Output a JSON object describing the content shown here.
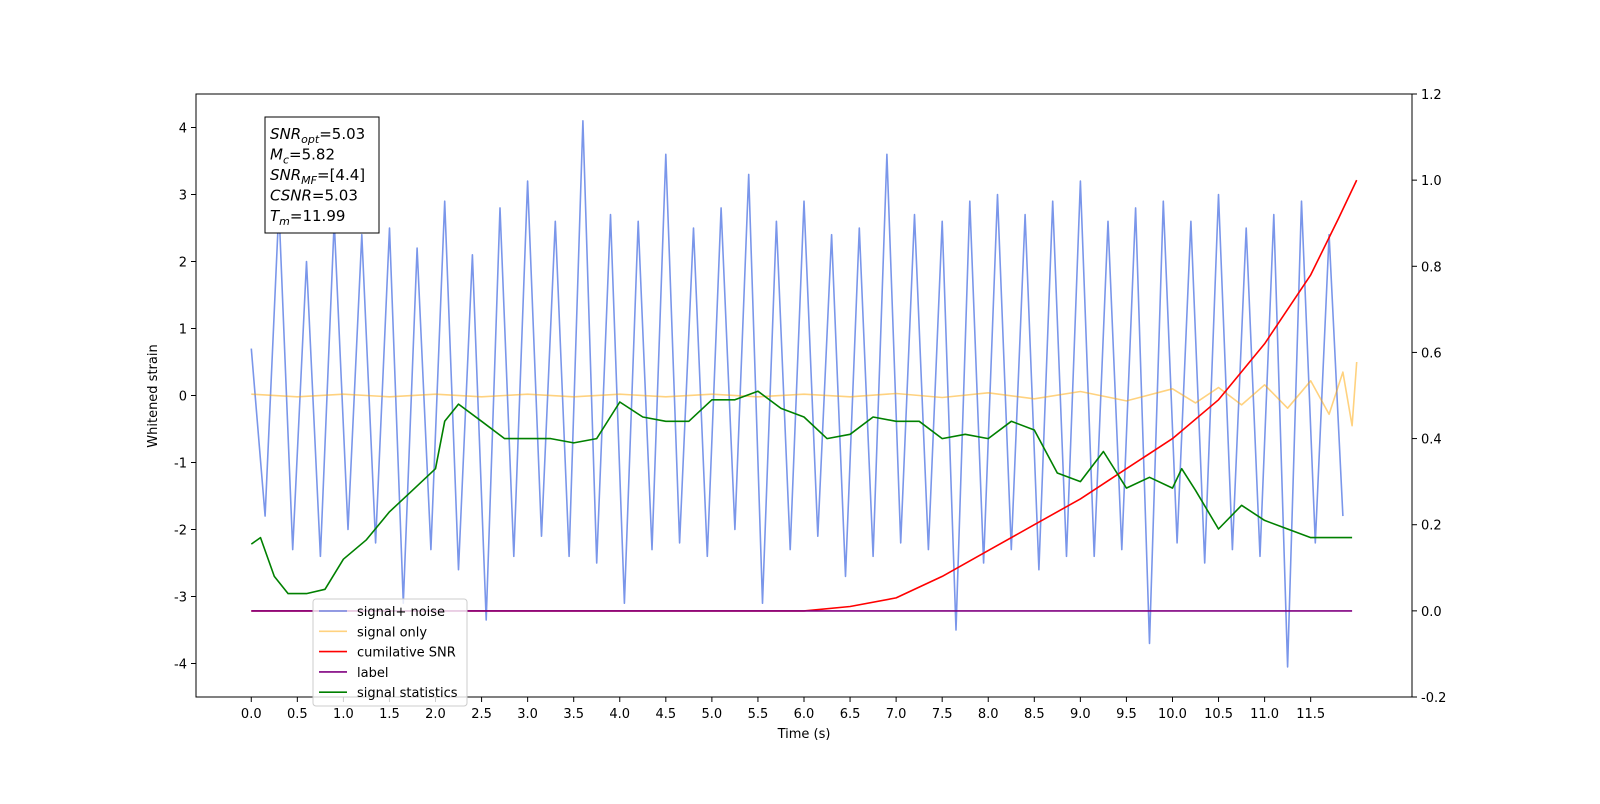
{
  "chart_data": {
    "type": "line",
    "xlabel": "Time (s)",
    "ylabel": "Whitened strain",
    "xlim": [
      -0.6,
      12.6
    ],
    "ylim": [
      -4.5,
      4.5
    ],
    "y2lim": [
      -0.2,
      1.2
    ],
    "xticks": [
      {
        "value": 0,
        "label": "0.0"
      },
      0.5,
      {
        "value": 1,
        "label": "1.0"
      },
      1.5,
      {
        "value": 2,
        "label": "2.0"
      },
      2.5,
      {
        "value": 3,
        "label": "3.0"
      },
      3.5,
      {
        "value": 4,
        "label": "4.0"
      },
      4.5,
      {
        "value": 5,
        "label": "5.0"
      },
      5.5,
      {
        "value": 6,
        "label": "6.0"
      },
      6.5,
      {
        "value": 7,
        "label": "7.0"
      },
      7.5,
      {
        "value": 8,
        "label": "8.0"
      },
      8.5,
      {
        "value": 9,
        "label": "9.0"
      },
      9.5,
      {
        "value": 10,
        "label": "10.0"
      },
      10.5,
      {
        "value": 11,
        "label": "11.0"
      },
      11.5
    ],
    "yticks": [
      -4,
      -3,
      -2,
      -1,
      0,
      1,
      2,
      3,
      4
    ],
    "y2ticks": [
      -0.2,
      {
        "value": 0,
        "label": "0.0"
      },
      0.2,
      0.4,
      0.6,
      0.8,
      {
        "value": 1,
        "label": "1.0"
      },
      1.2
    ],
    "legend": "lower left",
    "annotation": [
      {
        "base": "SNR",
        "sub": "opt",
        "rest": "=5.03"
      },
      {
        "base": "M",
        "sub": "c",
        "rest": "=5.82"
      },
      {
        "base": "SNR",
        "sub": "MF",
        "rest": "=[4.4]"
      },
      {
        "base": "CSNR",
        "sub": "",
        "rest": "=5.03"
      },
      {
        "base": "T",
        "sub": "m",
        "rest": "=11.99"
      }
    ],
    "series": [
      {
        "name": "signal+ noise",
        "color": "#4169e1",
        "opacity": 0.7,
        "x": [
          0,
          0.15,
          0.3,
          0.45,
          0.6,
          0.75,
          0.9,
          1.05,
          1.2,
          1.35,
          1.5,
          1.65,
          1.8,
          1.95,
          2.1,
          2.25,
          2.4,
          2.55,
          2.7,
          2.85,
          3,
          3.15,
          3.3,
          3.45,
          3.6,
          3.75,
          3.9,
          4.05,
          4.2,
          4.35,
          4.5,
          4.65,
          4.8,
          4.95,
          5.1,
          5.25,
          5.4,
          5.55,
          5.7,
          5.85,
          6,
          6.15,
          6.3,
          6.45,
          6.6,
          6.75,
          6.9,
          7.05,
          7.2,
          7.35,
          7.5,
          7.65,
          7.8,
          7.95,
          8.1,
          8.25,
          8.4,
          8.55,
          8.7,
          8.85,
          9,
          9.15,
          9.3,
          9.45,
          9.6,
          9.75,
          9.9,
          10.05,
          10.2,
          10.35,
          10.5,
          10.65,
          10.8,
          10.95,
          11.1,
          11.25,
          11.4,
          11.55,
          11.7,
          11.85
        ],
        "values": [
          0.7,
          -1.8,
          2.8,
          -2.3,
          2.0,
          -2.4,
          2.6,
          -2.0,
          2.4,
          -2.2,
          2.5,
          -3.1,
          2.2,
          -2.3,
          2.9,
          -2.6,
          2.1,
          -3.35,
          2.8,
          -2.4,
          3.2,
          -2.1,
          2.6,
          -2.4,
          4.1,
          -2.5,
          2.7,
          -3.1,
          2.6,
          -2.3,
          3.6,
          -2.2,
          2.5,
          -2.4,
          2.8,
          -2.0,
          3.3,
          -3.1,
          2.6,
          -2.3,
          2.9,
          -2.1,
          2.4,
          -2.7,
          2.5,
          -2.4,
          3.6,
          -2.2,
          2.7,
          -2.3,
          2.6,
          -3.5,
          2.9,
          -2.5,
          3.0,
          -2.3,
          2.7,
          -2.6,
          2.9,
          -2.4,
          3.2,
          -2.4,
          2.6,
          -2.3,
          2.8,
          -3.7,
          2.9,
          -2.2,
          2.6,
          -2.5,
          3.0,
          -2.3,
          2.5,
          -2.4,
          2.7,
          -4.05,
          2.9,
          -2.2,
          2.4,
          -1.8
        ]
      },
      {
        "name": "signal only",
        "color": "#ffa500",
        "opacity": 0.5,
        "x": [
          0,
          0.5,
          1,
          1.5,
          2,
          2.5,
          3,
          3.5,
          4,
          4.5,
          5,
          5.5,
          6,
          6.5,
          7,
          7.5,
          8,
          8.5,
          9,
          9.5,
          10,
          10.25,
          10.5,
          10.75,
          11,
          11.25,
          11.5,
          11.7,
          11.85,
          11.95,
          12
        ],
        "values": [
          0.02,
          -0.02,
          0.02,
          -0.02,
          0.02,
          -0.02,
          0.02,
          -0.02,
          0.02,
          -0.02,
          0.02,
          -0.02,
          0.02,
          -0.02,
          0.03,
          -0.03,
          0.04,
          -0.05,
          0.06,
          -0.08,
          0.1,
          -0.11,
          0.12,
          -0.14,
          0.16,
          -0.19,
          0.22,
          -0.28,
          0.35,
          -0.45,
          0.5
        ]
      },
      {
        "name": "cumilative SNR",
        "color": "#ff0000",
        "axis": "y2",
        "x": [
          0,
          5,
          6,
          6.5,
          7,
          7.5,
          8,
          8.5,
          9,
          9.5,
          10,
          10.5,
          11,
          11.5,
          11.8,
          12
        ],
        "values": [
          0,
          0,
          0,
          0.01,
          0.03,
          0.08,
          0.14,
          0.2,
          0.26,
          0.33,
          0.4,
          0.49,
          0.62,
          0.78,
          0.91,
          1.0
        ]
      },
      {
        "name": "label",
        "color": "#800080",
        "axis": "y2",
        "x": [
          0,
          11.95
        ],
        "values": [
          0,
          0
        ]
      },
      {
        "name": "signal statistics",
        "color": "#008000",
        "axis": "y2",
        "x": [
          0,
          0.1,
          0.25,
          0.4,
          0.6,
          0.8,
          1,
          1.25,
          1.5,
          1.75,
          2,
          2.1,
          2.25,
          2.5,
          2.75,
          3,
          3.25,
          3.5,
          3.75,
          4,
          4.25,
          4.5,
          4.75,
          5,
          5.25,
          5.5,
          5.75,
          6,
          6.25,
          6.5,
          6.75,
          7,
          7.25,
          7.5,
          7.75,
          8,
          8.25,
          8.5,
          8.75,
          9,
          9.25,
          9.5,
          9.75,
          10,
          10.1,
          10.25,
          10.5,
          10.75,
          11,
          11.25,
          11.5,
          11.75,
          11.95
        ],
        "values": [
          0.155,
          0.17,
          0.08,
          0.04,
          0.04,
          0.05,
          0.12,
          0.165,
          0.23,
          0.28,
          0.33,
          0.44,
          0.48,
          0.44,
          0.4,
          0.4,
          0.4,
          0.39,
          0.4,
          0.485,
          0.45,
          0.44,
          0.44,
          0.49,
          0.49,
          0.51,
          0.47,
          0.45,
          0.4,
          0.41,
          0.45,
          0.44,
          0.44,
          0.4,
          0.41,
          0.4,
          0.44,
          0.42,
          0.32,
          0.3,
          0.37,
          0.285,
          0.31,
          0.285,
          0.33,
          0.28,
          0.19,
          0.245,
          0.21,
          0.19,
          0.17,
          0.17,
          0.17
        ]
      }
    ]
  }
}
